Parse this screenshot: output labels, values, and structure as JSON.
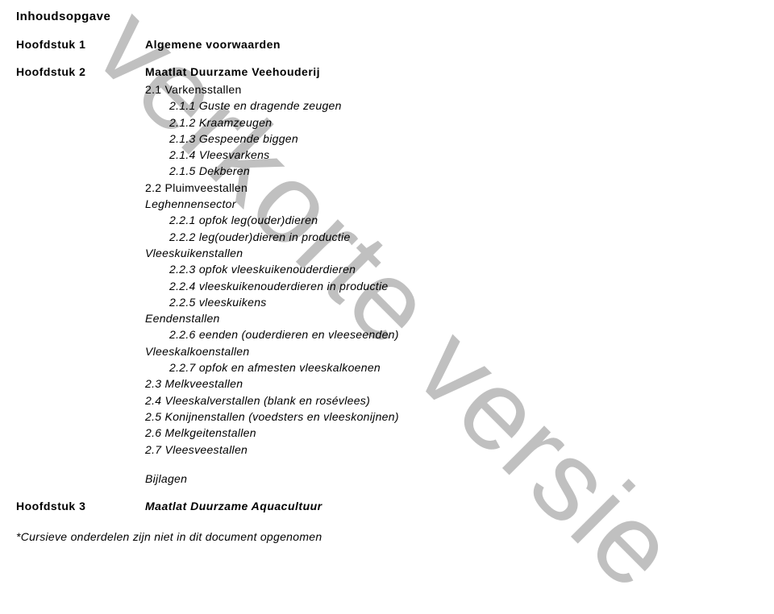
{
  "watermark": "verkorte versie",
  "title": "Inhoudsopgave",
  "chapters": [
    {
      "label": "Hoofdstuk 1",
      "title": "Algemene voorwaarden"
    },
    {
      "label": "Hoofdstuk 2",
      "title": "Maatlat Duurzame Veehouderij"
    },
    {
      "label": "Hoofdstuk 3",
      "title": "Maatlat Duurzame Aquacultuur"
    }
  ],
  "toc": {
    "s2_1": "2.1 Varkensstallen",
    "s2_1_1": "2.1.1 Guste en dragende zeugen",
    "s2_1_2": "2.1.2 Kraamzeugen",
    "s2_1_3": "2.1.3 Gespeende biggen",
    "s2_1_4": "2.1.4 Vleesvarkens",
    "s2_1_5": "2.1.5 Dekberen",
    "s2_2": "2.2 Pluimveestallen",
    "leghennen": "Leghennensector",
    "s2_2_1": "2.2.1 opfok leg(ouder)dieren",
    "s2_2_2": "2.2.2 leg(ouder)dieren in productie",
    "vleeskuiken": "Vleeskuikenstallen",
    "s2_2_3": "2.2.3 opfok vleeskuikenouderdieren",
    "s2_2_4": "2.2.4 vleeskuikenouderdieren in productie",
    "s2_2_5": "2.2.5 vleeskuikens",
    "eenden": "Eendenstallen",
    "s2_2_6": "2.2.6 eenden (ouderdieren en vleeseenden)",
    "vleeskalkoen": "Vleeskalkoenstallen",
    "s2_2_7": "2.2.7 opfok en afmesten vleeskalkoenen",
    "s2_3": "2.3 Melkveestallen",
    "s2_4": "2.4 Vleeskalverstallen (blank en rosévlees)",
    "s2_5": "2.5 Konijnenstallen (voedsters en vleeskonijnen)",
    "s2_6": "2.6 Melkgeitenstallen",
    "s2_7": "2.7 Vleesveestallen"
  },
  "bijlagen": "Bijlagen",
  "footnote": "*Cursieve onderdelen zijn niet in dit document opgenomen"
}
